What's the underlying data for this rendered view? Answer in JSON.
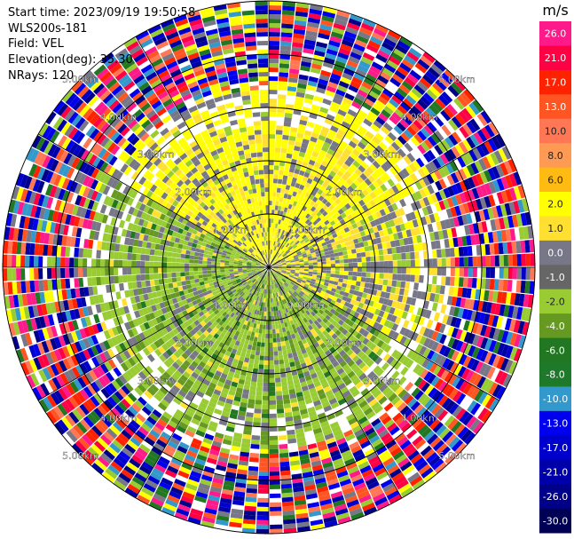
{
  "header": {
    "start_time": "Start time: 2023/09/19 19:50:58",
    "instrument": "WLS200s-181",
    "field": "Field: VEL",
    "elevation": "Elevation(deg): 35.30",
    "nrays": "NRays: 120"
  },
  "colorbar": {
    "unit": "m/s",
    "bins": [
      {
        "label": "26.0",
        "color": "#ff1a8c"
      },
      {
        "label": "21.0",
        "color": "#ff0044"
      },
      {
        "label": "17.0",
        "color": "#ff2200"
      },
      {
        "label": "13.0",
        "color": "#ff5522"
      },
      {
        "label": "10.0",
        "color": "#ff7755"
      },
      {
        "label": "8.0",
        "color": "#ff9a55"
      },
      {
        "label": "6.0",
        "color": "#ffbb11"
      },
      {
        "label": "2.0",
        "color": "#ffff00"
      },
      {
        "label": "1.0",
        "color": "#ffe030"
      },
      {
        "label": "0.0",
        "color": "#777788"
      },
      {
        "label": "-1.0",
        "color": "#666666"
      },
      {
        "label": "-2.0",
        "color": "#99cc33"
      },
      {
        "label": "-4.0",
        "color": "#669922"
      },
      {
        "label": "-6.0",
        "color": "#227722"
      },
      {
        "label": "-8.0",
        "color": "#1e7a2a"
      },
      {
        "label": "-10.0",
        "color": "#3399cc"
      },
      {
        "label": "-13.0",
        "color": "#0000ee"
      },
      {
        "label": "-17.0",
        "color": "#0000cc"
      },
      {
        "label": "-21.0",
        "color": "#0000aa"
      },
      {
        "label": "-26.0",
        "color": "#000088"
      },
      {
        "label": "-30.0",
        "color": "#000055"
      }
    ]
  },
  "range_rings": [
    {
      "range_km": 1,
      "label": "1.00km"
    },
    {
      "range_km": 2,
      "label": "2.00km"
    },
    {
      "range_km": 3,
      "label": "3.00km"
    },
    {
      "range_km": 4,
      "label": "4.00km"
    },
    {
      "range_km": 5,
      "label": "5.00km"
    }
  ],
  "chart_data": {
    "type": "heatmap",
    "projection": "polar PPI (radar plan position indicator)",
    "field": "VEL",
    "units": "m/s",
    "elevation_deg": 35.3,
    "n_rays": 120,
    "max_range_km": 5.0,
    "range_ring_labels": [
      "1.00km",
      "2.00km",
      "3.00km",
      "4.00km",
      "5.00km"
    ],
    "colorbar_ticks": [
      "26.0",
      "21.0",
      "17.0",
      "13.0",
      "10.0",
      "8.0",
      "6.0",
      "2.0",
      "1.0",
      "0.0",
      "-1.0",
      "-2.0",
      "-4.0",
      "-6.0",
      "-8.0",
      "-10.0",
      "-13.0",
      "-17.0",
      "-21.0",
      "-26.0",
      "-30.0"
    ],
    "sector_summary": [
      {
        "sector": "north (azimuth approx. 315-45 deg), range < 3 km",
        "dominant_velocity_m_s": "1.0 to 2.0 (yellow)"
      },
      {
        "sector": "south and west (azimuth approx. 135-315 deg), range < 3 km",
        "dominant_velocity_m_s": "-1.0 to -4.0 (green)"
      },
      {
        "sector": "scattered throughout inner region",
        "dominant_velocity_m_s": "0.0 (grey)"
      },
      {
        "sector": "outer ring, range > 3.3 km",
        "dominant_velocity_m_s": "noise, all values -30.0 to 26.0"
      }
    ]
  }
}
